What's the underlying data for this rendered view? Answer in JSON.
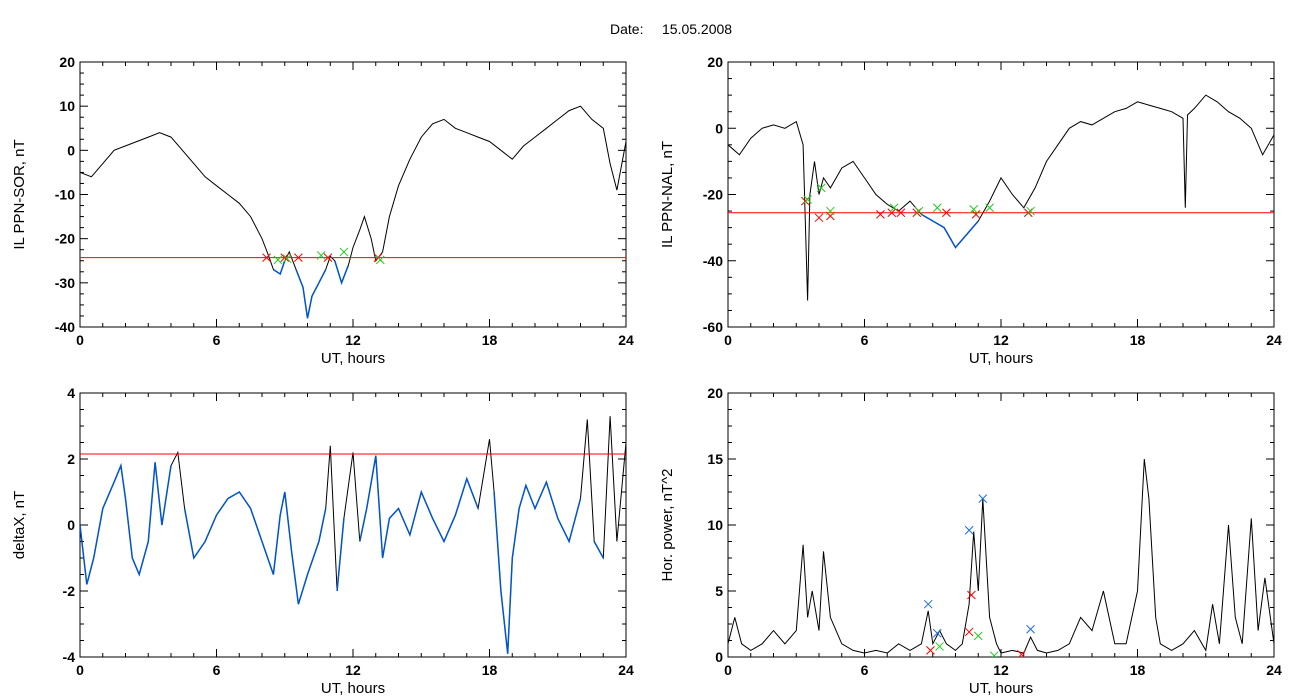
{
  "figure": {
    "date_label": "Date:",
    "date_value": "15.05.2008"
  },
  "colors": {
    "trace": "#000000",
    "below": "#0055cc",
    "threshold": "#ff0000",
    "mark_red": "#ff0000",
    "mark_green": "#22cc22",
    "mark_blue": "#1e6fd9"
  },
  "chart_data": [
    {
      "type": "line",
      "xlabel": "UT, hours",
      "ylabel": "IL PPN-SOR, nT",
      "xlim": [
        0,
        24
      ],
      "ylim": [
        -40,
        20
      ],
      "xticks": [
        0,
        6,
        12,
        18,
        24
      ],
      "yticks": [
        -40,
        -30,
        -20,
        -10,
        0,
        10,
        20
      ],
      "threshold": -24.3,
      "series": [
        {
          "x": [
            0,
            0.5,
            1,
            1.5,
            2,
            2.5,
            3,
            3.5,
            4,
            4.5,
            5,
            5.5,
            6,
            6.5,
            7,
            7.5,
            8,
            8.3,
            8.5,
            8.8,
            9,
            9.2,
            9.5,
            9.8,
            10,
            10.2,
            10.5,
            10.8,
            11,
            11.2,
            11.5,
            11.8,
            12,
            12.3,
            12.5,
            12.8,
            13,
            13.3,
            13.6,
            14,
            14.5,
            15,
            15.5,
            16,
            16.5,
            17,
            17.5,
            18,
            18.5,
            19,
            19.5,
            20,
            20.5,
            21,
            21.5,
            22,
            22.5,
            23,
            23.3,
            23.6,
            24
          ],
          "y": [
            -5,
            -6,
            -3,
            0,
            1,
            2,
            3,
            4,
            3,
            0,
            -3,
            -6,
            -8,
            -10,
            -12,
            -15,
            -20,
            -24,
            -27,
            -28,
            -25,
            -23,
            -27,
            -31,
            -38,
            -33,
            -30,
            -27,
            -24,
            -25,
            -30,
            -26,
            -22,
            -18,
            -15,
            -20,
            -25,
            -23,
            -15,
            -8,
            -2,
            3,
            6,
            7,
            5,
            4,
            3,
            2,
            0,
            -2,
            1,
            3,
            5,
            7,
            9,
            10,
            7,
            5,
            -3,
            -9,
            2
          ]
        }
      ],
      "markers": [
        {
          "color": "red",
          "points": [
            [
              8.2,
              -24.3
            ],
            [
              9,
              -24.3
            ],
            [
              9.6,
              -24.3
            ],
            [
              10.9,
              -24.3
            ],
            [
              13.1,
              -24.3
            ]
          ]
        },
        {
          "color": "green",
          "points": [
            [
              8.7,
              -24.8
            ],
            [
              9.1,
              -24.5
            ],
            [
              10.6,
              -23.8
            ],
            [
              11.6,
              -23
            ],
            [
              13.2,
              -24.8
            ]
          ]
        }
      ]
    },
    {
      "type": "line",
      "xlabel": "UT, hours",
      "ylabel": "IL PPN-NAL, nT",
      "xlim": [
        0,
        24
      ],
      "ylim": [
        -60,
        20
      ],
      "xticks": [
        0,
        6,
        12,
        18,
        24
      ],
      "yticks": [
        -60,
        -40,
        -20,
        0,
        20
      ],
      "threshold": -25.5,
      "series": [
        {
          "x": [
            0,
            0.5,
            1,
            1.5,
            2,
            2.5,
            3,
            3.3,
            3.5,
            3.6,
            3.8,
            4,
            4.2,
            4.5,
            5,
            5.5,
            6,
            6.5,
            7,
            7.5,
            8,
            8.5,
            9,
            9.5,
            10,
            10.5,
            11,
            11.5,
            12,
            12.5,
            13,
            13.5,
            14,
            14.5,
            15,
            15.5,
            16,
            16.5,
            17,
            17.5,
            18,
            18.5,
            19,
            19.5,
            20,
            20.1,
            20.2,
            20.5,
            21,
            21.5,
            22,
            22.5,
            23,
            23.5,
            24
          ],
          "y": [
            -5,
            -8,
            -3,
            0,
            1,
            0,
            2,
            -5,
            -52,
            -20,
            -10,
            -20,
            -15,
            -18,
            -12,
            -10,
            -15,
            -20,
            -23,
            -25,
            -22,
            -26,
            -28,
            -30,
            -36,
            -32,
            -28,
            -22,
            -15,
            -20,
            -24,
            -18,
            -10,
            -5,
            0,
            2,
            1,
            3,
            5,
            6,
            8,
            7,
            6,
            5,
            3,
            -24,
            4,
            6,
            10,
            8,
            5,
            3,
            0,
            -8,
            -2
          ]
        }
      ],
      "markers": [
        {
          "color": "red",
          "points": [
            [
              3.4,
              -22
            ],
            [
              4,
              -27
            ],
            [
              4.5,
              -26.5
            ],
            [
              6.7,
              -26
            ],
            [
              7.2,
              -25.5
            ],
            [
              7.6,
              -25.5
            ],
            [
              8.3,
              -25.5
            ],
            [
              9.6,
              -25.5
            ],
            [
              10.9,
              -26
            ],
            [
              13.2,
              -25.5
            ]
          ]
        },
        {
          "color": "green",
          "points": [
            [
              3.5,
              -21.5
            ],
            [
              4.1,
              -18
            ],
            [
              4.5,
              -25
            ],
            [
              7.3,
              -24
            ],
            [
              8.4,
              -25
            ],
            [
              9.2,
              -24
            ],
            [
              10.8,
              -24.5
            ],
            [
              11.5,
              -24
            ],
            [
              13.3,
              -25
            ]
          ]
        }
      ]
    },
    {
      "type": "line",
      "xlabel": "UT, hours",
      "ylabel": "deltaX, nT",
      "xlim": [
        0,
        24
      ],
      "ylim": [
        -4,
        4
      ],
      "xticks": [
        0,
        6,
        12,
        18,
        24
      ],
      "yticks": [
        -4,
        -2,
        0,
        2,
        4
      ],
      "threshold": 2.15,
      "series": [
        {
          "x": [
            0,
            0.3,
            0.6,
            1,
            1.5,
            1.8,
            2,
            2.3,
            2.6,
            3,
            3.3,
            3.6,
            4,
            4.3,
            4.6,
            5,
            5.5,
            6,
            6.5,
            7,
            7.5,
            8,
            8.5,
            8.8,
            9,
            9.3,
            9.6,
            10,
            10.5,
            10.8,
            11,
            11.3,
            11.6,
            12,
            12.3,
            12.6,
            13,
            13.3,
            13.6,
            14,
            14.5,
            15,
            15.5,
            16,
            16.5,
            17,
            17.5,
            18,
            18.2,
            18.5,
            18.8,
            19,
            19.3,
            19.6,
            20,
            20.5,
            21,
            21.5,
            22,
            22.3,
            22.6,
            23,
            23.3,
            23.6,
            24
          ],
          "y": [
            0,
            -1.8,
            -1,
            0.5,
            1.3,
            1.8,
            0.8,
            -1,
            -1.5,
            -0.5,
            1.9,
            0,
            1.8,
            2.2,
            0.5,
            -1,
            -0.5,
            0.3,
            0.8,
            1,
            0.5,
            -0.5,
            -1.5,
            0.3,
            1,
            -0.8,
            -2.4,
            -1.5,
            -0.5,
            0.5,
            2.4,
            -2,
            0.2,
            2.2,
            -0.5,
            0.5,
            2.1,
            -1,
            0.2,
            0.5,
            -0.3,
            1,
            0.2,
            -0.5,
            0.3,
            1.4,
            0.5,
            2.6,
            1,
            -2,
            -3.9,
            -1,
            0.5,
            1.2,
            0.5,
            1.3,
            0.2,
            -0.5,
            0.8,
            3.2,
            -0.5,
            -1,
            3.3,
            -0.5,
            2.5
          ]
        }
      ],
      "markers": []
    },
    {
      "type": "line",
      "xlabel": "UT, hours",
      "ylabel": "Hor. power, nT^2",
      "xlim": [
        0,
        24
      ],
      "ylim": [
        0,
        20
      ],
      "xticks": [
        0,
        6,
        12,
        18,
        24
      ],
      "yticks": [
        0,
        5,
        10,
        15,
        20
      ],
      "series": [
        {
          "x": [
            0,
            0.3,
            0.6,
            1,
            1.5,
            2,
            2.5,
            3,
            3.3,
            3.5,
            3.7,
            4,
            4.2,
            4.5,
            5,
            5.5,
            6,
            6.5,
            7,
            7.5,
            8,
            8.5,
            8.8,
            9,
            9.3,
            9.6,
            10,
            10.3,
            10.6,
            10.8,
            11,
            11.2,
            11.5,
            11.8,
            12,
            12.5,
            13,
            13.3,
            13.6,
            14,
            14.5,
            15,
            15.5,
            16,
            16.5,
            17,
            17.5,
            18,
            18.3,
            18.5,
            18.8,
            19,
            19.5,
            20,
            20.5,
            21,
            21.3,
            21.6,
            22,
            22.3,
            22.6,
            23,
            23.3,
            23.6,
            24
          ],
          "y": [
            1,
            3,
            1,
            0.5,
            1,
            2,
            1,
            2,
            8.5,
            3,
            5,
            2,
            8,
            3,
            1,
            0.5,
            0.3,
            0.5,
            0.3,
            1,
            0.5,
            1,
            3.5,
            1,
            2,
            1,
            0.5,
            1,
            4,
            9.5,
            5,
            12,
            3,
            1,
            0.3,
            0.5,
            0.3,
            1.5,
            0.5,
            0.3,
            0.5,
            1,
            3,
            2,
            5,
            1,
            1,
            5,
            15,
            12,
            3,
            1,
            0.5,
            1,
            2,
            0.5,
            4,
            1,
            10,
            3,
            1,
            10.5,
            2,
            6,
            1
          ]
        }
      ],
      "markers": [
        {
          "color": "blue",
          "points": [
            [
              8.8,
              4
            ],
            [
              9.2,
              1.8
            ],
            [
              10.6,
              9.6
            ],
            [
              11.2,
              12
            ],
            [
              13.3,
              2.1
            ]
          ]
        },
        {
          "color": "red",
          "points": [
            [
              8.9,
              0.5
            ],
            [
              10.7,
              4.7
            ],
            [
              10.6,
              1.9
            ],
            [
              12.9,
              0.2
            ]
          ]
        },
        {
          "color": "green",
          "points": [
            [
              9.3,
              0.8
            ],
            [
              11,
              1.6
            ],
            [
              11.7,
              0.1
            ]
          ]
        }
      ]
    }
  ]
}
